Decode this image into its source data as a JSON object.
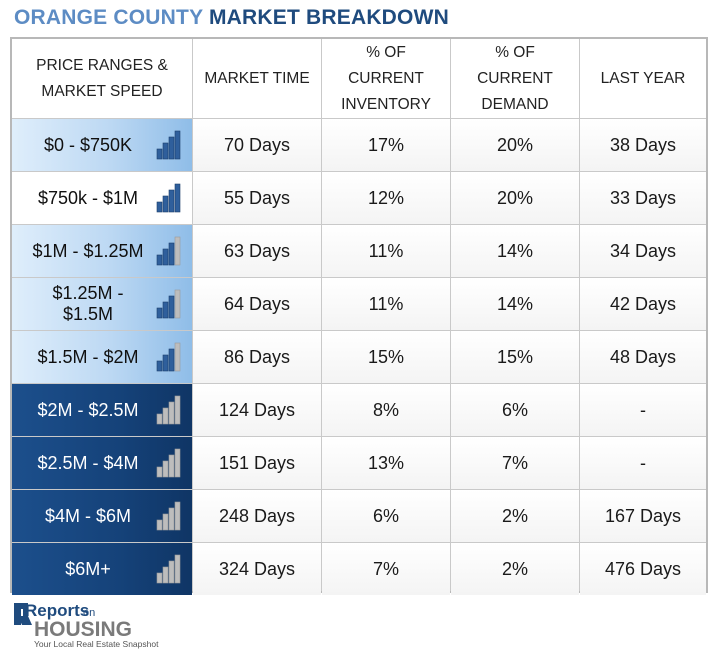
{
  "title": {
    "part1": "ORANGE COUNTY",
    "part2": "MARKET BREAKDOWN"
  },
  "headers": {
    "price": "PRICE RANGES & MARKET SPEED",
    "market_time": "MARKET TIME",
    "inventory": "% OF CURRENT INVENTORY",
    "demand": "% OF CURRENT DEMAND",
    "last_year": "LAST YEAR"
  },
  "rows": [
    {
      "price": "$0 - $750K",
      "market_time": "70 Days",
      "inventory": "17%",
      "demand": "20%",
      "last_year": "38 Days"
    },
    {
      "price": "$750k - $1M",
      "market_time": "55 Days",
      "inventory": "12%",
      "demand": "20%",
      "last_year": "33 Days"
    },
    {
      "price": "$1M - $1.25M",
      "market_time": "63 Days",
      "inventory": "11%",
      "demand": "14%",
      "last_year": "34 Days"
    },
    {
      "price": "$1.25M - $1.5M",
      "market_time": "64 Days",
      "inventory": "11%",
      "demand": "14%",
      "last_year": "42 Days"
    },
    {
      "price": "$1.5M - $2M",
      "market_time": "86 Days",
      "inventory": "15%",
      "demand": "15%",
      "last_year": "48 Days"
    },
    {
      "price": "$2M - $2.5M",
      "market_time": "124 Days",
      "inventory": "8%",
      "demand": "6%",
      "last_year": "-"
    },
    {
      "price": "$2.5M - $4M",
      "market_time": "151 Days",
      "inventory": "13%",
      "demand": "7%",
      "last_year": "-"
    },
    {
      "price": "$4M - $6M",
      "market_time": "248 Days",
      "inventory": "6%",
      "demand": "2%",
      "last_year": "167 Days"
    },
    {
      "price": "$6M+",
      "market_time": "324 Days",
      "inventory": "7%",
      "demand": "2%",
      "last_year": "476 Days"
    }
  ],
  "speed_icons": [
    "bars-4-of-4-icon",
    "bars-4-of-4-icon",
    "bars-3-of-4-icon",
    "bars-3-of-4-icon",
    "bars-3-of-4-icon",
    "bars-0-of-4-icon",
    "bars-0-of-4-icon",
    "bars-0-of-4-icon",
    "bars-0-of-4-icon"
  ],
  "speed_levels": [
    4,
    4,
    3,
    3,
    3,
    0,
    0,
    0,
    0
  ],
  "row_styles": [
    "light",
    "white",
    "light",
    "light",
    "light",
    "dark",
    "dark",
    "dark",
    "dark"
  ],
  "colors": {
    "title_light": "#5d8cc4",
    "title_dark": "#1f4b7e",
    "bar_filled": "#2f5f9c",
    "bar_empty": "#bdbdbd",
    "dark_row": "#1c4f8c"
  },
  "logo": {
    "reports": "Reports",
    "on": "on",
    "housing": "HOUSING",
    "tagline": "Your Local Real Estate Snapshot"
  }
}
